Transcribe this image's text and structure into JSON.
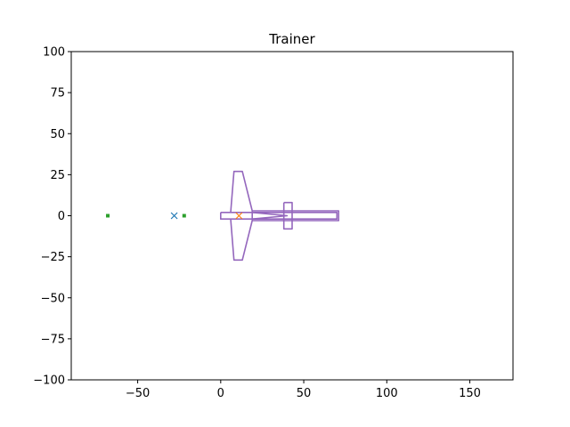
{
  "chart_data": {
    "type": "line",
    "title": "Trainer",
    "xlabel": "",
    "ylabel": "",
    "xlim": [
      -90,
      176
    ],
    "ylim": [
      -100,
      100
    ],
    "grid": false,
    "xticks": [
      -50,
      0,
      50,
      100,
      150
    ],
    "yticks": [
      -100,
      -75,
      -50,
      -25,
      0,
      25,
      50,
      75,
      100
    ],
    "xtick_labels": [
      "−50",
      "0",
      "50",
      "100",
      "150"
    ],
    "ytick_labels": [
      "−100",
      "−75",
      "−50",
      "−25",
      "0",
      "25",
      "50",
      "75",
      "100"
    ],
    "colors": {
      "outline": "#9467bd",
      "marker_blue": "#1f77b4",
      "marker_orange": "#ff7f0e",
      "marker_green": "#2ca02c"
    },
    "series": [
      {
        "kind": "line",
        "color": "#9467bd",
        "points": [
          [
            0,
            2
          ],
          [
            0,
            -2
          ],
          [
            70,
            -2
          ],
          [
            70,
            2
          ],
          [
            0,
            2
          ]
        ]
      },
      {
        "kind": "line",
        "color": "#9467bd",
        "points": [
          [
            6,
            2
          ],
          [
            8,
            27
          ],
          [
            13,
            27
          ],
          [
            19,
            3
          ],
          [
            19,
            -3
          ],
          [
            13,
            -27
          ],
          [
            8,
            -27
          ],
          [
            6,
            -2
          ]
        ]
      },
      {
        "kind": "line",
        "color": "#9467bd",
        "points": [
          [
            19,
            3
          ],
          [
            71,
            3
          ],
          [
            71,
            -3
          ],
          [
            19,
            -3
          ]
        ]
      },
      {
        "kind": "line",
        "color": "#9467bd",
        "points": [
          [
            38,
            8
          ],
          [
            43,
            8
          ],
          [
            43,
            -8
          ],
          [
            38,
            -8
          ],
          [
            38,
            8
          ]
        ]
      },
      {
        "kind": "line",
        "color": "#9467bd",
        "points": [
          [
            19,
            2
          ],
          [
            40,
            0
          ],
          [
            19,
            -2
          ]
        ]
      },
      {
        "kind": "marker",
        "marker": "x",
        "color": "#1f77b4",
        "points": [
          [
            -28,
            0
          ]
        ]
      },
      {
        "kind": "marker",
        "marker": "x",
        "color": "#ff7f0e",
        "points": [
          [
            11,
            0
          ]
        ]
      },
      {
        "kind": "marker",
        "marker": "square",
        "color": "#2ca02c",
        "points": [
          [
            -68,
            0
          ],
          [
            -22,
            0
          ]
        ]
      }
    ]
  }
}
